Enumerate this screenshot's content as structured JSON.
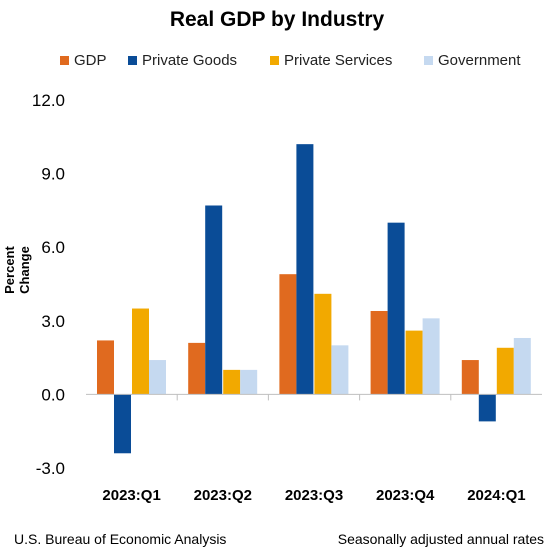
{
  "chart_data": {
    "type": "bar",
    "title": "Real GDP by Industry",
    "ylabel": "Percent Change",
    "xlabel": "",
    "categories": [
      "2023:Q1",
      "2023:Q2",
      "2023:Q3",
      "2023:Q4",
      "2024:Q1"
    ],
    "series": [
      {
        "name": "GDP",
        "color": "#E06A1F",
        "values": [
          2.2,
          2.1,
          4.9,
          3.4,
          1.4
        ]
      },
      {
        "name": "Private Goods",
        "color": "#0A4C97",
        "values": [
          -2.4,
          7.7,
          10.2,
          7.0,
          -1.1
        ]
      },
      {
        "name": "Private Services",
        "color": "#F2A900",
        "values": [
          3.5,
          1.0,
          4.1,
          2.6,
          1.9
        ]
      },
      {
        "name": "Government",
        "color": "#C5D9F0",
        "values": [
          1.4,
          1.0,
          2.0,
          3.1,
          2.3
        ]
      }
    ],
    "ylim": [
      -3.0,
      12.0
    ],
    "yticks": [
      "-3.0",
      "0.0",
      "3.0",
      "6.0",
      "9.0",
      "12.0"
    ],
    "grid": false,
    "legend_position": "top"
  },
  "footer": {
    "source": "U.S. Bureau of Economic Analysis",
    "note": "Seasonally adjusted annual rates"
  }
}
